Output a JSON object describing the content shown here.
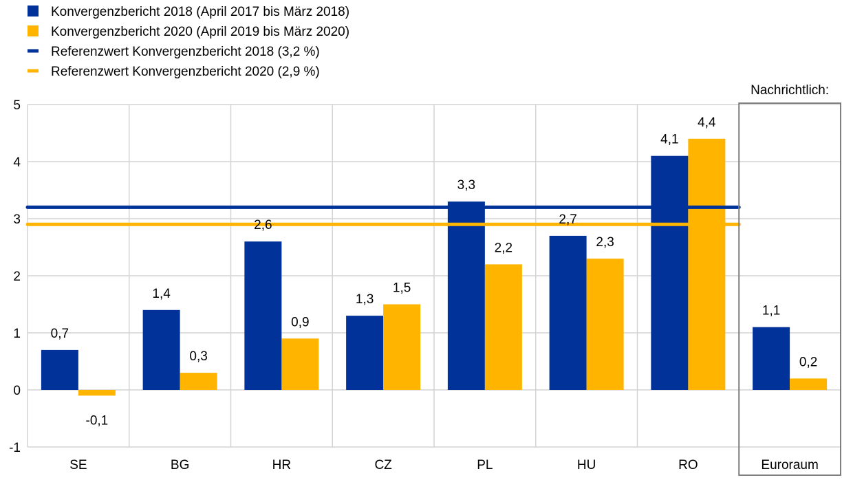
{
  "chart_data": {
    "type": "bar",
    "categories": [
      "SE",
      "BG",
      "HR",
      "CZ",
      "PL",
      "HU",
      "RO",
      "Euroraum"
    ],
    "series": [
      {
        "name": "Konvergenzbericht 2018 (April 2017 bis März 2018)",
        "color": "#003299",
        "values": [
          0.7,
          1.4,
          2.6,
          1.3,
          3.3,
          2.7,
          4.1,
          1.1
        ],
        "labels": [
          "0,7",
          "1,4",
          "2,6",
          "1,3",
          "3,3",
          "2,7",
          "4,1",
          "1,1"
        ]
      },
      {
        "name": "Konvergenzbericht 2020 (April 2019 bis März 2020)",
        "color": "#FFB400",
        "values": [
          -0.1,
          0.3,
          0.9,
          1.5,
          2.2,
          2.3,
          4.4,
          0.2
        ],
        "labels": [
          "-0,1",
          "0,3",
          "0,9",
          "1,5",
          "2,2",
          "2,3",
          "4,4",
          "0,2"
        ]
      }
    ],
    "reference_lines": [
      {
        "name": "Referenzwert Konvergenzbericht 2018 (3,2 %)",
        "value": 3.2,
        "color": "#003299"
      },
      {
        "name": "Referenzwert Konvergenzbericht 2020 (2,9 %)",
        "value": 2.9,
        "color": "#FFB400"
      }
    ],
    "yticks": [
      -1,
      0,
      1,
      2,
      3,
      4,
      5
    ],
    "ylim": [
      -1,
      5
    ],
    "grid": true,
    "legend_position": "top-left",
    "highlight": {
      "category": "Euroraum",
      "label": "Nachrichtlich:"
    }
  }
}
